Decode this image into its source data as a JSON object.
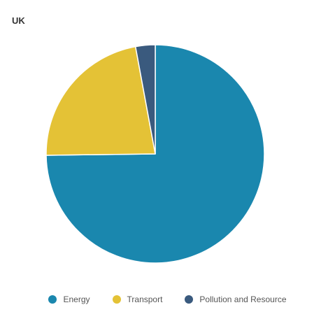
{
  "chart_data": {
    "type": "pie",
    "title": "UK",
    "categories": [
      "Energy",
      "Transport",
      "Pollution and Resource"
    ],
    "values": [
      74.8,
      22.3,
      2.9
    ],
    "colors": [
      "#1a87ae",
      "#e4c236",
      "#3a5a7e"
    ],
    "legend_position": "bottom-center",
    "start_angle": "top, clockwise"
  },
  "legend": {
    "items": [
      {
        "label": "Energy",
        "color": "#1a87ae"
      },
      {
        "label": "Transport",
        "color": "#e4c236"
      },
      {
        "label": "Pollution and Resource",
        "color": "#3a5a7e"
      }
    ]
  }
}
